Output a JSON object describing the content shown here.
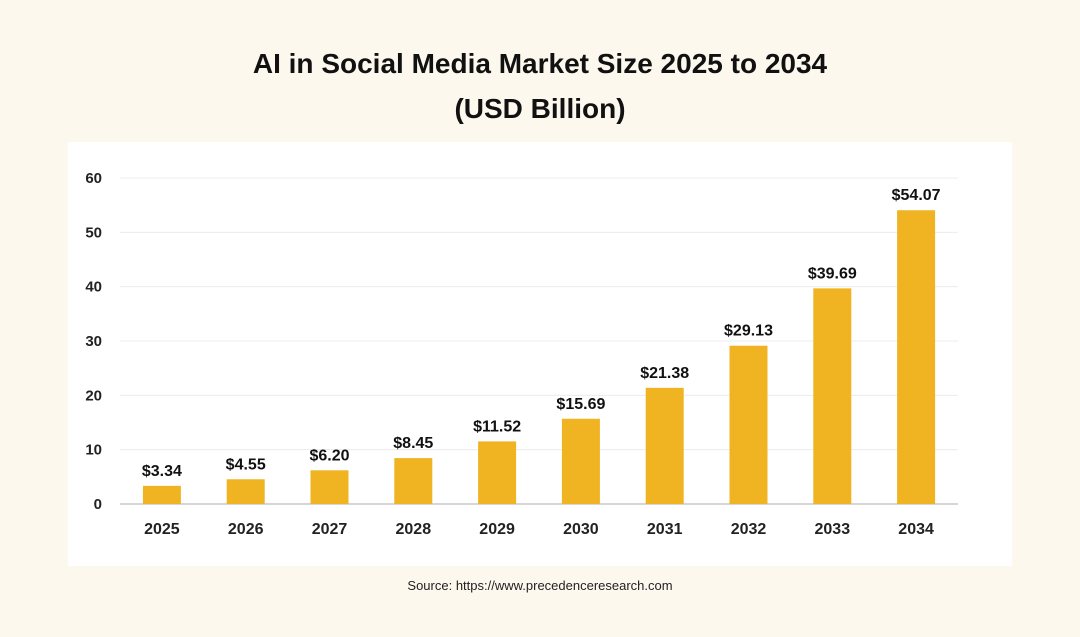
{
  "chart_data": {
    "type": "bar",
    "title": "AI in Social Media Market Size 2025 to 2034",
    "subtitle": "(USD Billion)",
    "xlabel": "",
    "ylabel": "",
    "categories": [
      "2025",
      "2026",
      "2027",
      "2028",
      "2029",
      "2030",
      "2031",
      "2032",
      "2033",
      "2034"
    ],
    "values": [
      3.34,
      4.55,
      6.2,
      8.45,
      11.52,
      15.69,
      21.38,
      29.13,
      39.69,
      54.07
    ],
    "data_labels": [
      "$3.34",
      "$4.55",
      "$6.20",
      "$8.45",
      "$11.52",
      "$15.69",
      "$21.38",
      "$29.13",
      "$39.69",
      "$54.07"
    ],
    "ylim": [
      0,
      60
    ],
    "yticks": [
      0,
      10,
      20,
      30,
      40,
      50,
      60
    ],
    "grid": true,
    "legend": "none",
    "bar_color": "#f0b322"
  },
  "source": "Source: https://www.precedenceresearch.com"
}
